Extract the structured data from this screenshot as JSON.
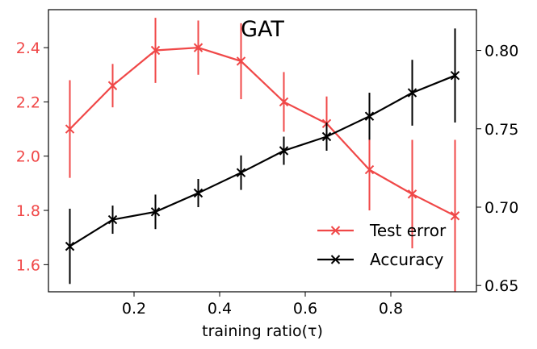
{
  "chart_data": {
    "type": "line",
    "title": "GAT",
    "xlabel": "training ratio(τ)",
    "xlim": [
      0.0,
      1.0
    ],
    "xticks": [
      0.2,
      0.4,
      0.6,
      0.8
    ],
    "xtick_labels": [
      "0.2",
      "0.4",
      "0.6",
      "0.8"
    ],
    "y_left": {
      "ylim": [
        1.5,
        2.54
      ],
      "ticks": [
        1.6,
        1.8,
        2.0,
        2.2,
        2.4
      ],
      "tick_labels": [
        "1.6",
        "1.8",
        "2.0",
        "2.2",
        "2.4"
      ],
      "color": "#f04848"
    },
    "y_right": {
      "ylim": [
        0.646,
        0.826
      ],
      "ticks": [
        0.65,
        0.7,
        0.75,
        0.8
      ],
      "tick_labels": [
        "0.65",
        "0.70",
        "0.75",
        "0.80"
      ],
      "color": "#000000"
    },
    "x": [
      0.05,
      0.15,
      0.25,
      0.35,
      0.45,
      0.55,
      0.65,
      0.75,
      0.85,
      0.95
    ],
    "series": [
      {
        "name": "Test error",
        "axis": "left",
        "color": "#f04848",
        "values": [
          2.1,
          2.26,
          2.39,
          2.4,
          2.35,
          2.2,
          2.12,
          1.95,
          1.86,
          1.78
        ],
        "errors": [
          0.18,
          0.08,
          0.12,
          0.1,
          0.14,
          0.11,
          0.1,
          0.15,
          0.2,
          0.28
        ]
      },
      {
        "name": "Accuracy",
        "axis": "right",
        "color": "#000000",
        "values": [
          0.675,
          0.692,
          0.697,
          0.709,
          0.722,
          0.736,
          0.745,
          0.758,
          0.773,
          0.784
        ],
        "errors": [
          0.024,
          0.009,
          0.011,
          0.009,
          0.011,
          0.009,
          0.009,
          0.015,
          0.021,
          0.03
        ]
      }
    ],
    "legend": "bottom-right",
    "grid": false
  }
}
